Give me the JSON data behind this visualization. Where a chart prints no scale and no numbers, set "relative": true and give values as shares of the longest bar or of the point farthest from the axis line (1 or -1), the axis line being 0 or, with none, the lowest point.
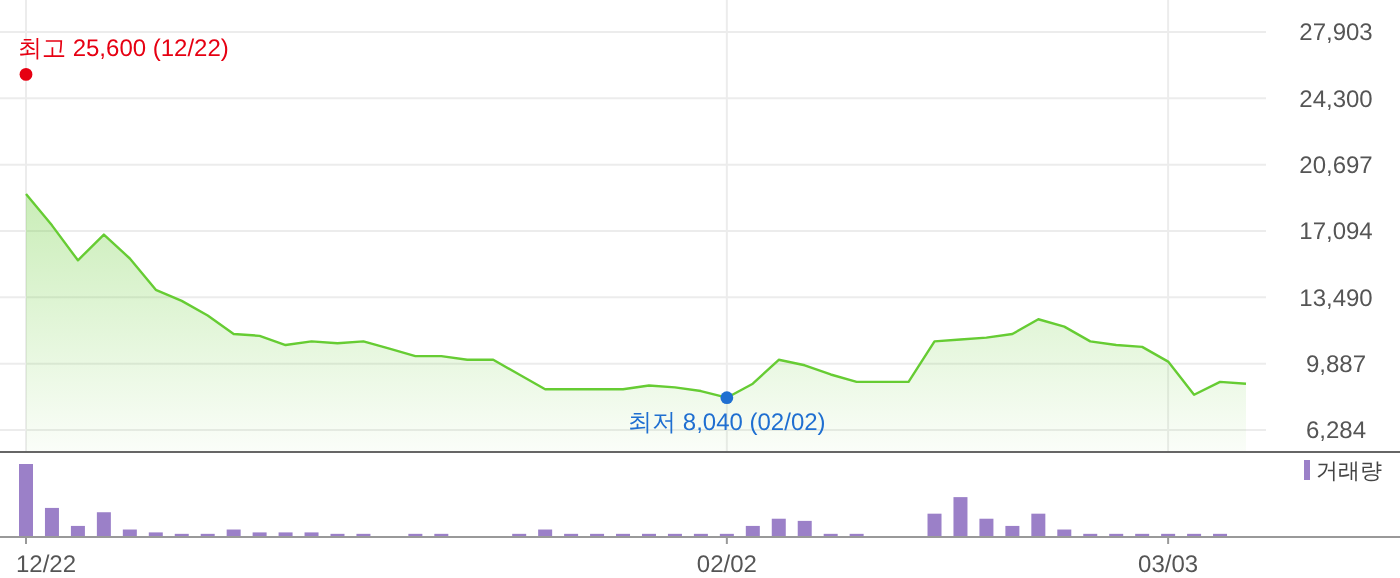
{
  "chart_data": [
    {
      "type": "area",
      "categories": [
        "12/22",
        null,
        null,
        null,
        null,
        null,
        null,
        null,
        null,
        null,
        null,
        null,
        null,
        null,
        null,
        null,
        null,
        null,
        null,
        null,
        null,
        null,
        null,
        null,
        null,
        null,
        null,
        "02/02",
        null,
        null,
        null,
        null,
        null,
        null,
        null,
        null,
        null,
        null,
        null,
        null,
        null,
        null,
        null,
        null,
        "03/03",
        null,
        null,
        null
      ],
      "series": [
        {
          "color": "#66cc33",
          "values": [
            19100,
            17400,
            15500,
            16900,
            15600,
            13900,
            13300,
            12500,
            11500,
            11400,
            10900,
            11100,
            11000,
            11100,
            10700,
            10300,
            10300,
            10100,
            10100,
            9300,
            8500,
            8500,
            8500,
            8500,
            8700,
            8600,
            8400,
            8040,
            8800,
            10100,
            9800,
            9300,
            8900,
            8900,
            8900,
            11100,
            11200,
            11300,
            11500,
            12300,
            11900,
            11100,
            10900,
            10800,
            10000,
            8200,
            8900,
            8800
          ]
        }
      ],
      "ylim": [
        5090,
        29640
      ],
      "yticks": [
        {
          "value": 6284,
          "label": "6,284"
        },
        {
          "value": 9887,
          "label": "9,887"
        },
        {
          "value": 13490,
          "label": "13,490"
        },
        {
          "value": 17094,
          "label": "17,094"
        },
        {
          "value": 20697,
          "label": "20,697"
        },
        {
          "value": 24300,
          "label": "24,300"
        },
        {
          "value": 27903,
          "label": "27,903"
        }
      ],
      "grid": true,
      "tick_labels": "y",
      "annotations": [
        {
          "text": "최고 25,600 (12/22)",
          "x": "12/22",
          "y": 25600
        },
        {
          "text": "최저 8,040 (02/02)",
          "x": "02/02",
          "y": 8040
        }
      ]
    },
    {
      "type": "bar",
      "categories": [
        "12/22",
        null,
        null,
        null,
        null,
        null,
        null,
        null,
        null,
        null,
        null,
        null,
        null,
        null,
        null,
        null,
        null,
        null,
        null,
        null,
        null,
        null,
        null,
        null,
        null,
        null,
        null,
        "02/02",
        null,
        null,
        null,
        null,
        null,
        null,
        null,
        null,
        null,
        null,
        null,
        null,
        null,
        null,
        null,
        null,
        "03/03",
        null,
        null,
        null
      ],
      "relative": true,
      "legend": "top right",
      "tick_labels": "x",
      "series": [
        {
          "name": "거래량",
          "color": "#9b80c8",
          "values": [
            1.0,
            0.39,
            0.14,
            0.33,
            0.09,
            0.05,
            0.03,
            0.03,
            0.09,
            0.05,
            0.05,
            0.05,
            0.03,
            0.03,
            0,
            0.03,
            0.03,
            0,
            0,
            0.03,
            0.09,
            0.03,
            0.03,
            0.03,
            0.03,
            0.03,
            0.03,
            0.03,
            0.14,
            0.24,
            0.21,
            0.03,
            0.03,
            0,
            0,
            0.31,
            0.54,
            0.24,
            0.14,
            0.31,
            0.09,
            0.03,
            0.03,
            0.03,
            0.03,
            0.03,
            0.03,
            0
          ]
        }
      ]
    }
  ]
}
